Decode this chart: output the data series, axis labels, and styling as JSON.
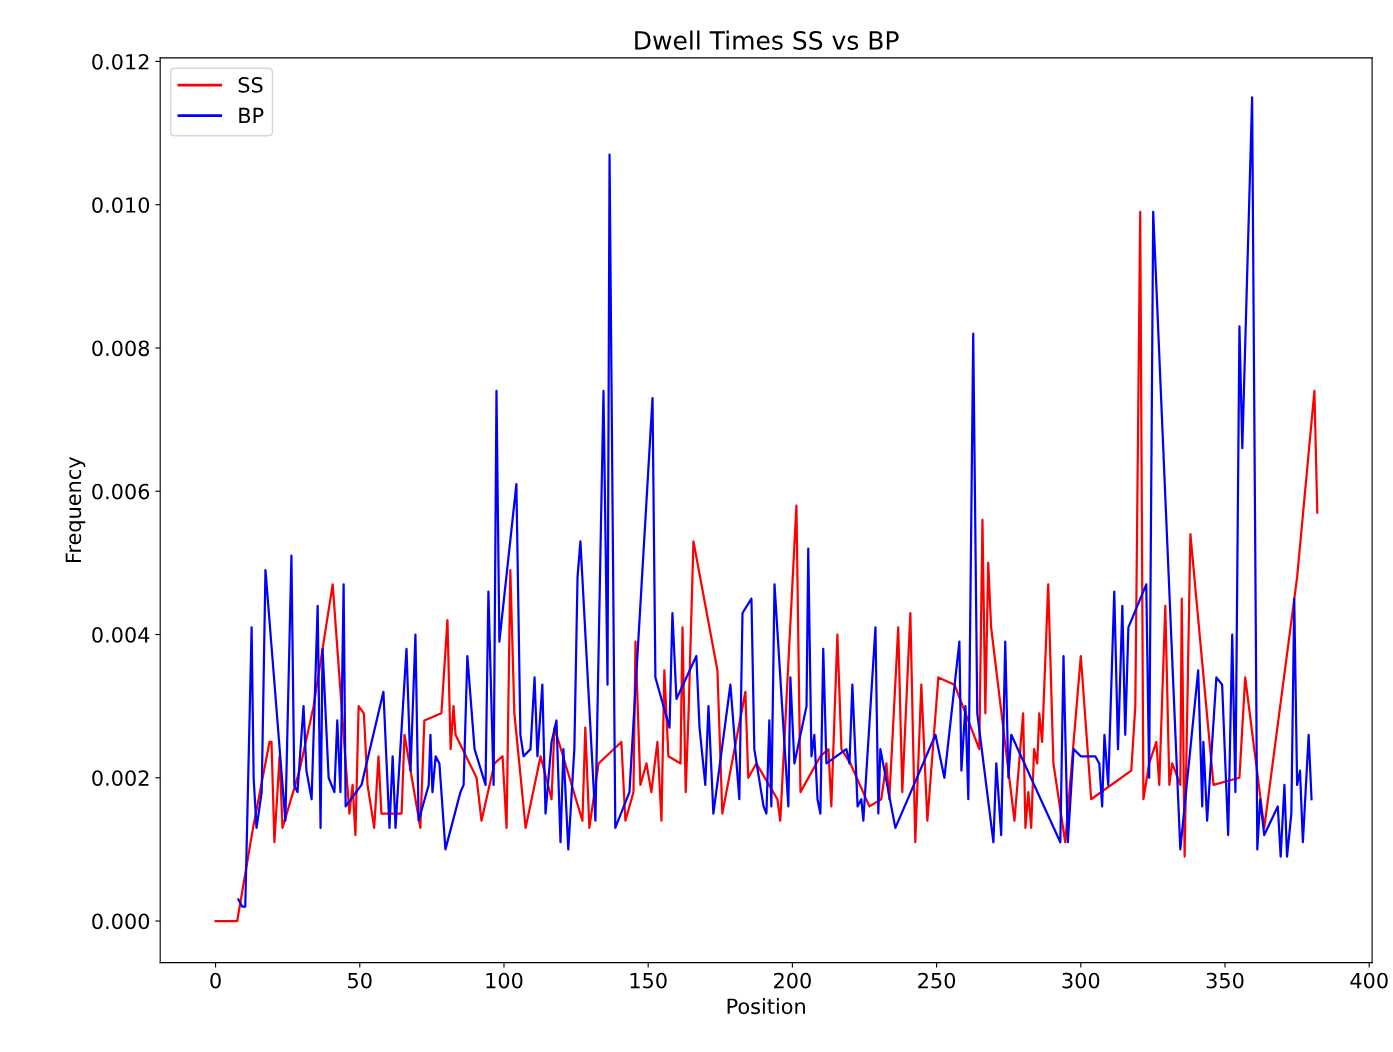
{
  "chart_data": {
    "type": "line",
    "title": "Dwell Times SS vs BP",
    "xlabel": "Position",
    "ylabel": "Frequency",
    "xlim": [
      -19.2,
      401
    ],
    "ylim": [
      -0.00058,
      0.01205
    ],
    "xticks": [
      0,
      50,
      100,
      150,
      200,
      250,
      300,
      350,
      400
    ],
    "yticks": [
      {
        "value": 0,
        "label": "0.000"
      },
      {
        "value": 0.002,
        "label": "0.002"
      },
      {
        "value": 0.004,
        "label": "0.004"
      },
      {
        "value": 0.006,
        "label": "0.006"
      },
      {
        "value": 0.008,
        "label": "0.008"
      },
      {
        "value": 0.01,
        "label": "0.010"
      },
      {
        "value": 0.012,
        "label": "0.012"
      }
    ],
    "grid": false,
    "legend": "top left",
    "marker": "none",
    "line_style": "solid",
    "series": [
      {
        "name": "SS",
        "color": "#ff0000",
        "x": [
          0,
          3,
          7.5,
          13,
          18.7,
          19.4,
          20.4,
          22.2,
          23.2,
          29.1,
          34,
          40.6,
          46.4,
          47.5,
          48.5,
          49.6,
          51.4,
          52.7,
          55,
          56.5,
          57.5,
          64.5,
          65.5,
          71,
          72.4,
          78.3,
          80.4,
          81.5,
          82.5,
          83.2,
          90.5,
          92.2,
          96.7,
          99.5,
          100.9,
          102.2,
          103.6,
          107.5,
          112.7,
          116.5,
          117.5,
          127.2,
          128.2,
          129.6,
          132.8,
          140.7,
          142.1,
          144.9,
          145.6,
          147.3,
          149.4,
          151.1,
          153.2,
          154.6,
          155.6,
          157,
          161.2,
          161.9,
          163,
          164,
          165.7,
          174,
          175.7,
          183.7,
          184.7,
          187.5,
          194.8,
          195.8,
          201.4,
          202.8,
          209.7,
          212.5,
          213.5,
          215.6,
          217,
          220.1,
          226.7,
          230.8,
          232.6,
          233.6,
          236.7,
          238.1,
          240.9,
          242.6,
          244.7,
          246.8,
          250.6,
          256.2,
          264.8,
          265.9,
          266.9,
          267.9,
          268.9,
          277,
          280,
          280.8,
          281.8,
          282.8,
          283.8,
          284.9,
          285.6,
          286.6,
          288.7,
          290.5,
          294.6,
          300,
          303.6,
          317.5,
          318.9,
          320.6,
          321.7,
          323.7,
          326.2,
          327.2,
          329.3,
          330.7,
          331.7,
          334.5,
          335,
          336,
          338,
          346,
          355,
          357,
          363.6,
          375,
          381,
          382
        ],
        "values": [
          0,
          0,
          0,
          0.0013,
          0.0025,
          0.0025,
          0.0011,
          0.0023,
          0.0013,
          0.0021,
          0.003,
          0.0047,
          0.0015,
          0.0019,
          0.0012,
          0.003,
          0.0029,
          0.0019,
          0.0013,
          0.0023,
          0.0015,
          0.0015,
          0.0026,
          0.0013,
          0.0028,
          0.0029,
          0.0042,
          0.0024,
          0.003,
          0.0026,
          0.002,
          0.0014,
          0.0022,
          0.0023,
          0.0013,
          0.0049,
          0.0029,
          0.0013,
          0.0023,
          0.0017,
          0.0027,
          0.0014,
          0.0027,
          0.0013,
          0.0022,
          0.0025,
          0.0014,
          0.0018,
          0.0039,
          0.0019,
          0.0022,
          0.0018,
          0.0025,
          0.0014,
          0.0035,
          0.0023,
          0.0022,
          0.0041,
          0.0018,
          0.0029,
          0.0053,
          0.0035,
          0.0015,
          0.0032,
          0.002,
          0.0022,
          0.0017,
          0.0014,
          0.0058,
          0.0018,
          0.0023,
          0.0024,
          0.0016,
          0.004,
          0.0024,
          0.0022,
          0.0016,
          0.0017,
          0.0022,
          0.0017,
          0.0041,
          0.0018,
          0.0043,
          0.0011,
          0.0033,
          0.0014,
          0.0034,
          0.0033,
          0.0024,
          0.0056,
          0.0029,
          0.005,
          0.0041,
          0.0014,
          0.0029,
          0.0013,
          0.0018,
          0.0013,
          0.0024,
          0.0022,
          0.0029,
          0.0025,
          0.0047,
          0.0022,
          0.0011,
          0.0037,
          0.0017,
          0.0021,
          0.003,
          0.0099,
          0.0017,
          0.0022,
          0.0025,
          0.0019,
          0.0044,
          0.0019,
          0.0022,
          0.0019,
          0.0045,
          0.0009,
          0.0054,
          0.0019,
          0.002,
          0.0034,
          0.0013,
          0.0048,
          0.0074,
          0.0057
        ]
      },
      {
        "name": "BP",
        "color": "#0000ff",
        "x": [
          7.9,
          9.3,
          10.3,
          12.5,
          13.2,
          14.2,
          16,
          17.3,
          24.2,
          26.3,
          27.3,
          28.4,
          30.5,
          31.5,
          33.3,
          35.4,
          36.4,
          37.1,
          39.2,
          41.2,
          42.2,
          43.3,
          44.4,
          45.1,
          50.6,
          58.2,
          60.3,
          61.4,
          62.4,
          66.2,
          67.6,
          69.3,
          70.4,
          73.9,
          74.5,
          75.2,
          76.3,
          77.6,
          79.7,
          84.9,
          86,
          87.3,
          89.8,
          93.6,
          94.6,
          96.4,
          97.4,
          98.4,
          104.3,
          105.7,
          106.8,
          109.2,
          110.6,
          111.6,
          113.3,
          114.4,
          116.5,
          118.2,
          119.6,
          120.6,
          122.3,
          124.4,
          125.5,
          126.5,
          131.7,
          134.5,
          135.9,
          136.6,
          138.6,
          143.5,
          151.5,
          152.5,
          157.4,
          158.4,
          159.8,
          166.7,
          167.8,
          169.8,
          170.9,
          172.6,
          178.5,
          181.6,
          182.7,
          185.8,
          186.8,
          190,
          191,
          192,
          192.7,
          193.8,
          198.6,
          199.3,
          200.7,
          204.9,
          205.5,
          206.6,
          207.6,
          208.7,
          209.7,
          210.7,
          211.8,
          218.7,
          219.8,
          220.8,
          222.6,
          223.9,
          224.6,
          228.8,
          229.8,
          230.5,
          235.7,
          249.6,
          252.7,
          257.9,
          258.6,
          260,
          261,
          262.7,
          264.1,
          269.7,
          270.7,
          272.4,
          273.8,
          274.9,
          275.9,
          292.9,
          294,
          295.5,
          297.5,
          300,
          305,
          306.4,
          307.4,
          308.2,
          309.5,
          311.6,
          312.9,
          314.4,
          315.4,
          316.5,
          322.7,
          323.7,
          325.1,
          334.5,
          340.7,
          342.1,
          342.5,
          343.8,
          347,
          349,
          351.1,
          352.5,
          353.6,
          355,
          356,
          359.4,
          361.2,
          362.2,
          363.6,
          368.3,
          369.3,
          370.6,
          371.5,
          373,
          374,
          375,
          376,
          377,
          379,
          380
        ],
        "values": [
          0.0003,
          0.0002,
          0.0002,
          0.0041,
          0.002,
          0.0013,
          0.0018,
          0.0049,
          0.0014,
          0.0051,
          0.0019,
          0.0018,
          0.003,
          0.0021,
          0.0017,
          0.0044,
          0.0013,
          0.0038,
          0.002,
          0.0018,
          0.0028,
          0.0018,
          0.0047,
          0.0016,
          0.0019,
          0.0032,
          0.0013,
          0.0023,
          0.0013,
          0.0038,
          0.0021,
          0.004,
          0.0014,
          0.0019,
          0.0026,
          0.0018,
          0.0023,
          0.0022,
          0.001,
          0.0018,
          0.0019,
          0.0037,
          0.0024,
          0.0019,
          0.0046,
          0.0019,
          0.0074,
          0.0039,
          0.0061,
          0.0026,
          0.0023,
          0.0024,
          0.0034,
          0.0023,
          0.0033,
          0.0015,
          0.0025,
          0.0028,
          0.0011,
          0.0024,
          0.001,
          0.0024,
          0.0048,
          0.0053,
          0.0014,
          0.0074,
          0.0033,
          0.0107,
          0.0013,
          0.0018,
          0.0073,
          0.0034,
          0.0027,
          0.0043,
          0.0031,
          0.0037,
          0.0027,
          0.0019,
          0.003,
          0.0015,
          0.0033,
          0.0017,
          0.0043,
          0.0045,
          0.0024,
          0.0016,
          0.0015,
          0.0028,
          0.0016,
          0.0047,
          0.0016,
          0.0034,
          0.0022,
          0.003,
          0.0052,
          0.0023,
          0.0026,
          0.0017,
          0.0015,
          0.0038,
          0.0022,
          0.0024,
          0.0022,
          0.0033,
          0.0016,
          0.0017,
          0.0014,
          0.0041,
          0.0015,
          0.0024,
          0.0013,
          0.0026,
          0.002,
          0.0039,
          0.0021,
          0.003,
          0.0017,
          0.0082,
          0.0029,
          0.0011,
          0.0022,
          0.0012,
          0.0039,
          0.002,
          0.0026,
          0.0011,
          0.0037,
          0.0011,
          0.0024,
          0.0023,
          0.0023,
          0.0022,
          0.0016,
          0.0026,
          0.0019,
          0.0046,
          0.0024,
          0.0044,
          0.0026,
          0.0041,
          0.0047,
          0.002,
          0.0099,
          0.001,
          0.0035,
          0.0016,
          0.0025,
          0.0014,
          0.0034,
          0.0033,
          0.0012,
          0.004,
          0.0018,
          0.0083,
          0.0066,
          0.0115,
          0.001,
          0.0017,
          0.0012,
          0.0016,
          0.0009,
          0.0019,
          0.0009,
          0.0015,
          0.0045,
          0.0019,
          0.0021,
          0.0011,
          0.0026,
          0.0017
        ]
      }
    ]
  }
}
